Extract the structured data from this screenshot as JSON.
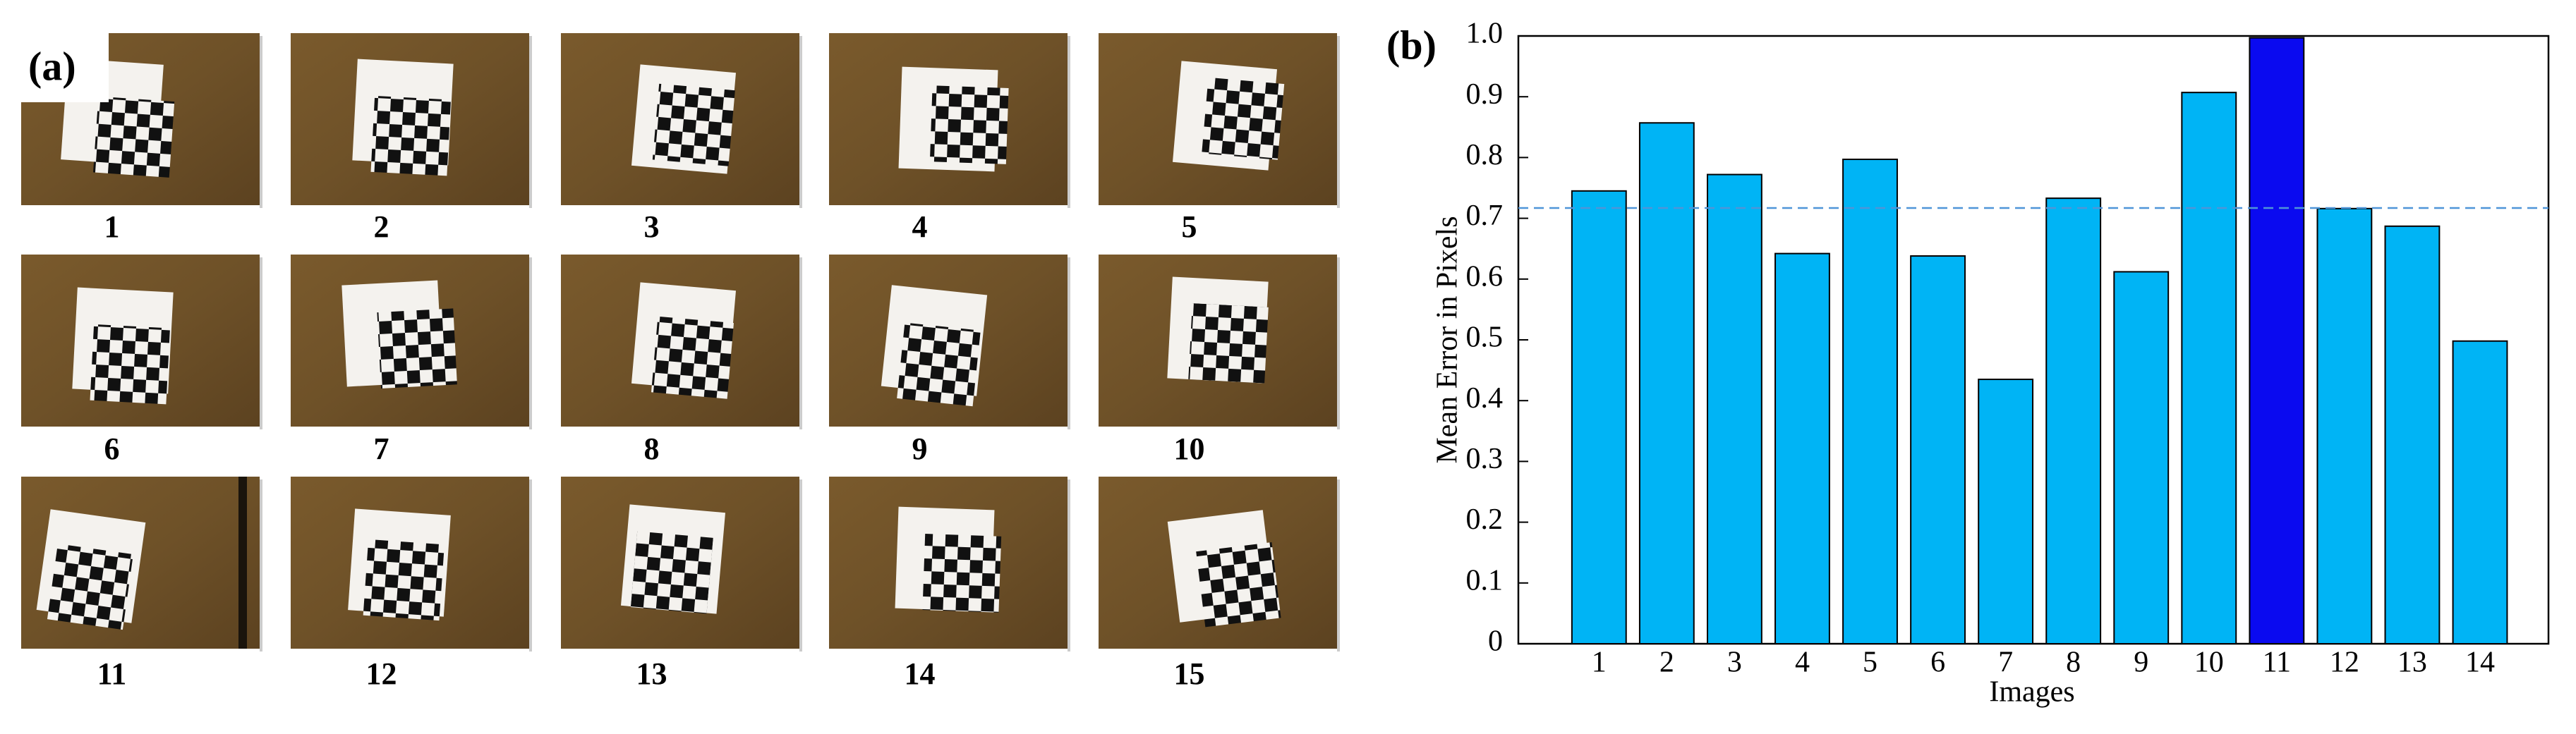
{
  "panel_a": {
    "label": "(a)",
    "images": [
      "1",
      "2",
      "3",
      "4",
      "5",
      "6",
      "7",
      "8",
      "9",
      "10",
      "11",
      "12",
      "13",
      "14",
      "15"
    ]
  },
  "chart_data": {
    "type": "bar",
    "label": "(b)",
    "xlabel": "Images",
    "ylabel": "Mean Error in Pixels",
    "categories": [
      "1",
      "2",
      "3",
      "4",
      "5",
      "6",
      "7",
      "8",
      "9",
      "10",
      "11",
      "12",
      "13",
      "14"
    ],
    "values": [
      0.745,
      0.857,
      0.772,
      0.642,
      0.797,
      0.638,
      0.435,
      0.733,
      0.612,
      0.907,
      0.997,
      0.716,
      0.687,
      0.498
    ],
    "colors": [
      "#00b4f5",
      "#00b4f5",
      "#00b4f5",
      "#00b4f5",
      "#00b4f5",
      "#00b4f5",
      "#00b4f5",
      "#00b4f5",
      "#00b4f5",
      "#00b4f5",
      "#0a0af0",
      "#00b4f5",
      "#00b4f5",
      "#00b4f5"
    ],
    "reference_line": 0.717,
    "reference_color": "#4f95d8",
    "ylim": [
      0,
      1
    ],
    "yticks": [
      0,
      0.1,
      0.2,
      0.3,
      0.4,
      0.5,
      0.6,
      0.7,
      0.8,
      0.9,
      {
        "value": 1,
        "label": "1.0"
      }
    ]
  }
}
